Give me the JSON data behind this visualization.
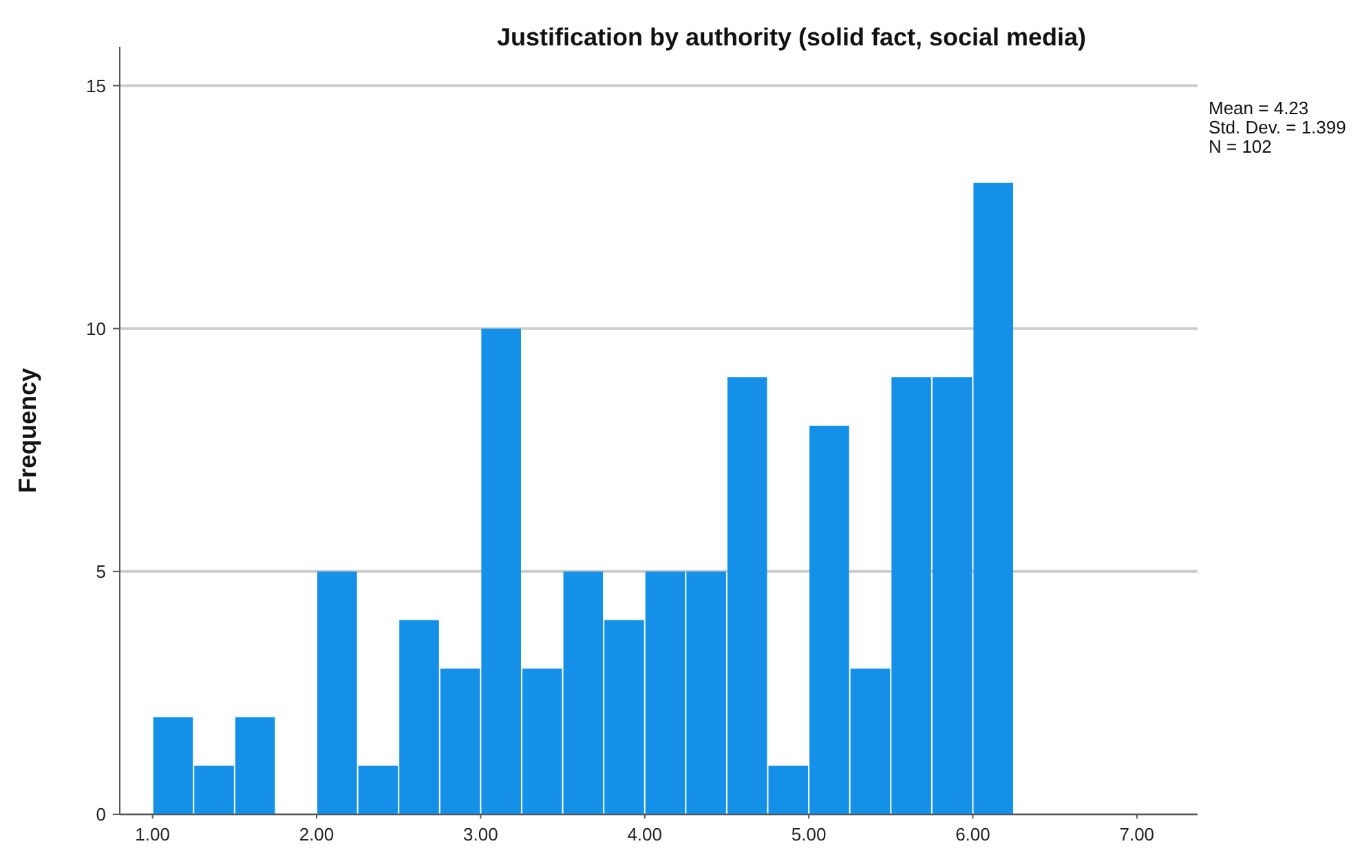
{
  "chart_data": {
    "type": "histogram",
    "title": "Justification by authority (solid fact, social media)",
    "ylabel": "Frequency",
    "bins": [
      1,
      1.25,
      1.5,
      1.75,
      2,
      2.25,
      2.5,
      2.75,
      3,
      3.25,
      3.5,
      3.75,
      4,
      4.25,
      4.5,
      4.75,
      5,
      5.25,
      5.5,
      5.75,
      6,
      6.25
    ],
    "values": [
      2,
      1,
      2,
      0,
      5,
      1,
      4,
      3,
      10,
      3,
      5,
      4,
      5,
      5,
      9,
      1,
      8,
      3,
      9,
      9,
      13
    ],
    "color": "#1590e8",
    "xlim": [
      0.8,
      7.37
    ],
    "xticks": [
      {
        "value": 1,
        "label": "1.00"
      },
      {
        "value": 2,
        "label": "2.00"
      },
      {
        "value": 3,
        "label": "3.00"
      },
      {
        "value": 4,
        "label": "4.00"
      },
      {
        "value": 5,
        "label": "5.00"
      },
      {
        "value": 6,
        "label": "6.00"
      },
      {
        "value": 7,
        "label": "7.00"
      }
    ],
    "ylim": [
      0,
      15.8
    ],
    "yticks": [
      0,
      5,
      10,
      15
    ],
    "grid": "y",
    "annotations": [
      "Mean = 4.23",
      "Std. Dev. = 1.399",
      "N = 102"
    ]
  }
}
